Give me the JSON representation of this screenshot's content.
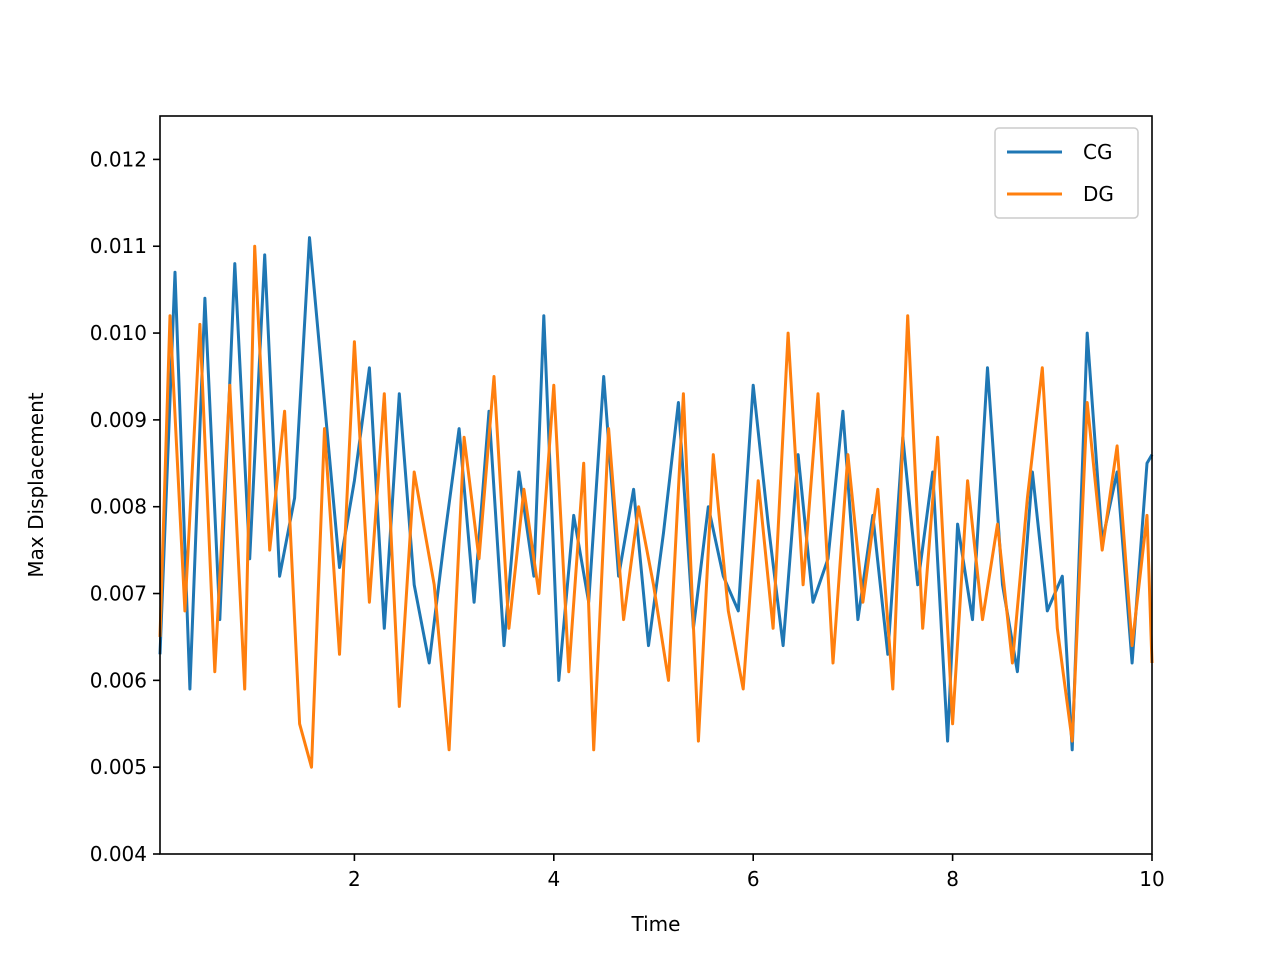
{
  "chart_data": {
    "type": "line",
    "title": "",
    "xlabel": "Time",
    "ylabel": "Max Displacement",
    "xlim": [
      0.05,
      10
    ],
    "ylim": [
      0.004,
      0.0125
    ],
    "x_ticks": [
      2,
      4,
      6,
      8,
      10
    ],
    "x_tick_labels": [
      "2",
      "4",
      "6",
      "8",
      "10"
    ],
    "y_ticks": [
      0.004,
      0.005,
      0.006,
      0.007,
      0.008,
      0.009,
      0.01,
      0.011,
      0.012
    ],
    "y_tick_labels": [
      "0.004",
      "0.005",
      "0.006",
      "0.007",
      "0.008",
      "0.009",
      "0.010",
      "0.011",
      "0.012"
    ],
    "grid": false,
    "legend_position": "top-right",
    "colors": {
      "CG": "#1f77b4",
      "DG": "#ff7f0e"
    },
    "series": [
      {
        "name": "CG",
        "color": "#1f77b4",
        "x": [
          0.05,
          0.2,
          0.35,
          0.5,
          0.65,
          0.8,
          0.95,
          1.1,
          1.25,
          1.4,
          1.55,
          1.7,
          1.85,
          2.0,
          2.15,
          2.3,
          2.45,
          2.6,
          2.75,
          2.9,
          3.05,
          3.2,
          3.35,
          3.5,
          3.65,
          3.8,
          3.9,
          4.05,
          4.2,
          4.35,
          4.5,
          4.65,
          4.8,
          4.95,
          5.1,
          5.25,
          5.4,
          5.55,
          5.7,
          5.85,
          6.0,
          6.15,
          6.3,
          6.45,
          6.6,
          6.75,
          6.9,
          7.05,
          7.2,
          7.35,
          7.5,
          7.65,
          7.8,
          7.95,
          8.05,
          8.2,
          8.35,
          8.5,
          8.65,
          8.8,
          8.95,
          9.1,
          9.2,
          9.35,
          9.5,
          9.65,
          9.8,
          9.95,
          10.0
        ],
        "values": [
          0.0063,
          0.0107,
          0.0059,
          0.0104,
          0.0067,
          0.0108,
          0.0074,
          0.0109,
          0.0072,
          0.0081,
          0.0111,
          0.0092,
          0.0073,
          0.0083,
          0.0096,
          0.0066,
          0.0093,
          0.0071,
          0.0062,
          0.0076,
          0.0089,
          0.0069,
          0.0091,
          0.0064,
          0.0084,
          0.0072,
          0.0102,
          0.006,
          0.0079,
          0.0069,
          0.0095,
          0.0072,
          0.0082,
          0.0064,
          0.0077,
          0.0092,
          0.0066,
          0.008,
          0.0072,
          0.0068,
          0.0094,
          0.0078,
          0.0064,
          0.0086,
          0.0069,
          0.0074,
          0.0091,
          0.0067,
          0.0079,
          0.0063,
          0.0088,
          0.0071,
          0.0084,
          0.0053,
          0.0078,
          0.0067,
          0.0096,
          0.0071,
          0.0061,
          0.0084,
          0.0068,
          0.0072,
          0.0052,
          0.01,
          0.0076,
          0.0084,
          0.0062,
          0.0085,
          0.0086
        ]
      },
      {
        "name": "DG",
        "color": "#ff7f0e",
        "x": [
          0.05,
          0.15,
          0.3,
          0.45,
          0.6,
          0.75,
          0.9,
          1.0,
          1.15,
          1.3,
          1.45,
          1.57,
          1.7,
          1.85,
          2.0,
          2.15,
          2.3,
          2.45,
          2.6,
          2.8,
          2.95,
          3.1,
          3.25,
          3.4,
          3.55,
          3.7,
          3.85,
          4.0,
          4.15,
          4.3,
          4.4,
          4.55,
          4.7,
          4.85,
          5.0,
          5.15,
          5.3,
          5.45,
          5.6,
          5.75,
          5.9,
          6.05,
          6.2,
          6.35,
          6.5,
          6.65,
          6.8,
          6.95,
          7.1,
          7.25,
          7.4,
          7.55,
          7.7,
          7.85,
          8.0,
          8.15,
          8.3,
          8.45,
          8.6,
          8.75,
          8.9,
          9.05,
          9.2,
          9.35,
          9.5,
          9.65,
          9.8,
          9.95,
          10.0
        ],
        "values": [
          0.0065,
          0.0102,
          0.0068,
          0.0101,
          0.0061,
          0.0094,
          0.0059,
          0.011,
          0.0075,
          0.0091,
          0.0055,
          0.005,
          0.0089,
          0.0063,
          0.0099,
          0.0069,
          0.0093,
          0.0057,
          0.0084,
          0.0071,
          0.0052,
          0.0088,
          0.0074,
          0.0095,
          0.0066,
          0.0082,
          0.007,
          0.0094,
          0.0061,
          0.0085,
          0.0052,
          0.0089,
          0.0067,
          0.008,
          0.0071,
          0.006,
          0.0093,
          0.0053,
          0.0086,
          0.0068,
          0.0059,
          0.0083,
          0.0066,
          0.01,
          0.0071,
          0.0093,
          0.0062,
          0.0086,
          0.0069,
          0.0082,
          0.0059,
          0.0102,
          0.0066,
          0.0088,
          0.0055,
          0.0083,
          0.0067,
          0.0078,
          0.0062,
          0.0081,
          0.0096,
          0.0066,
          0.0053,
          0.0092,
          0.0075,
          0.0087,
          0.0064,
          0.0079,
          0.0062
        ]
      }
    ]
  }
}
